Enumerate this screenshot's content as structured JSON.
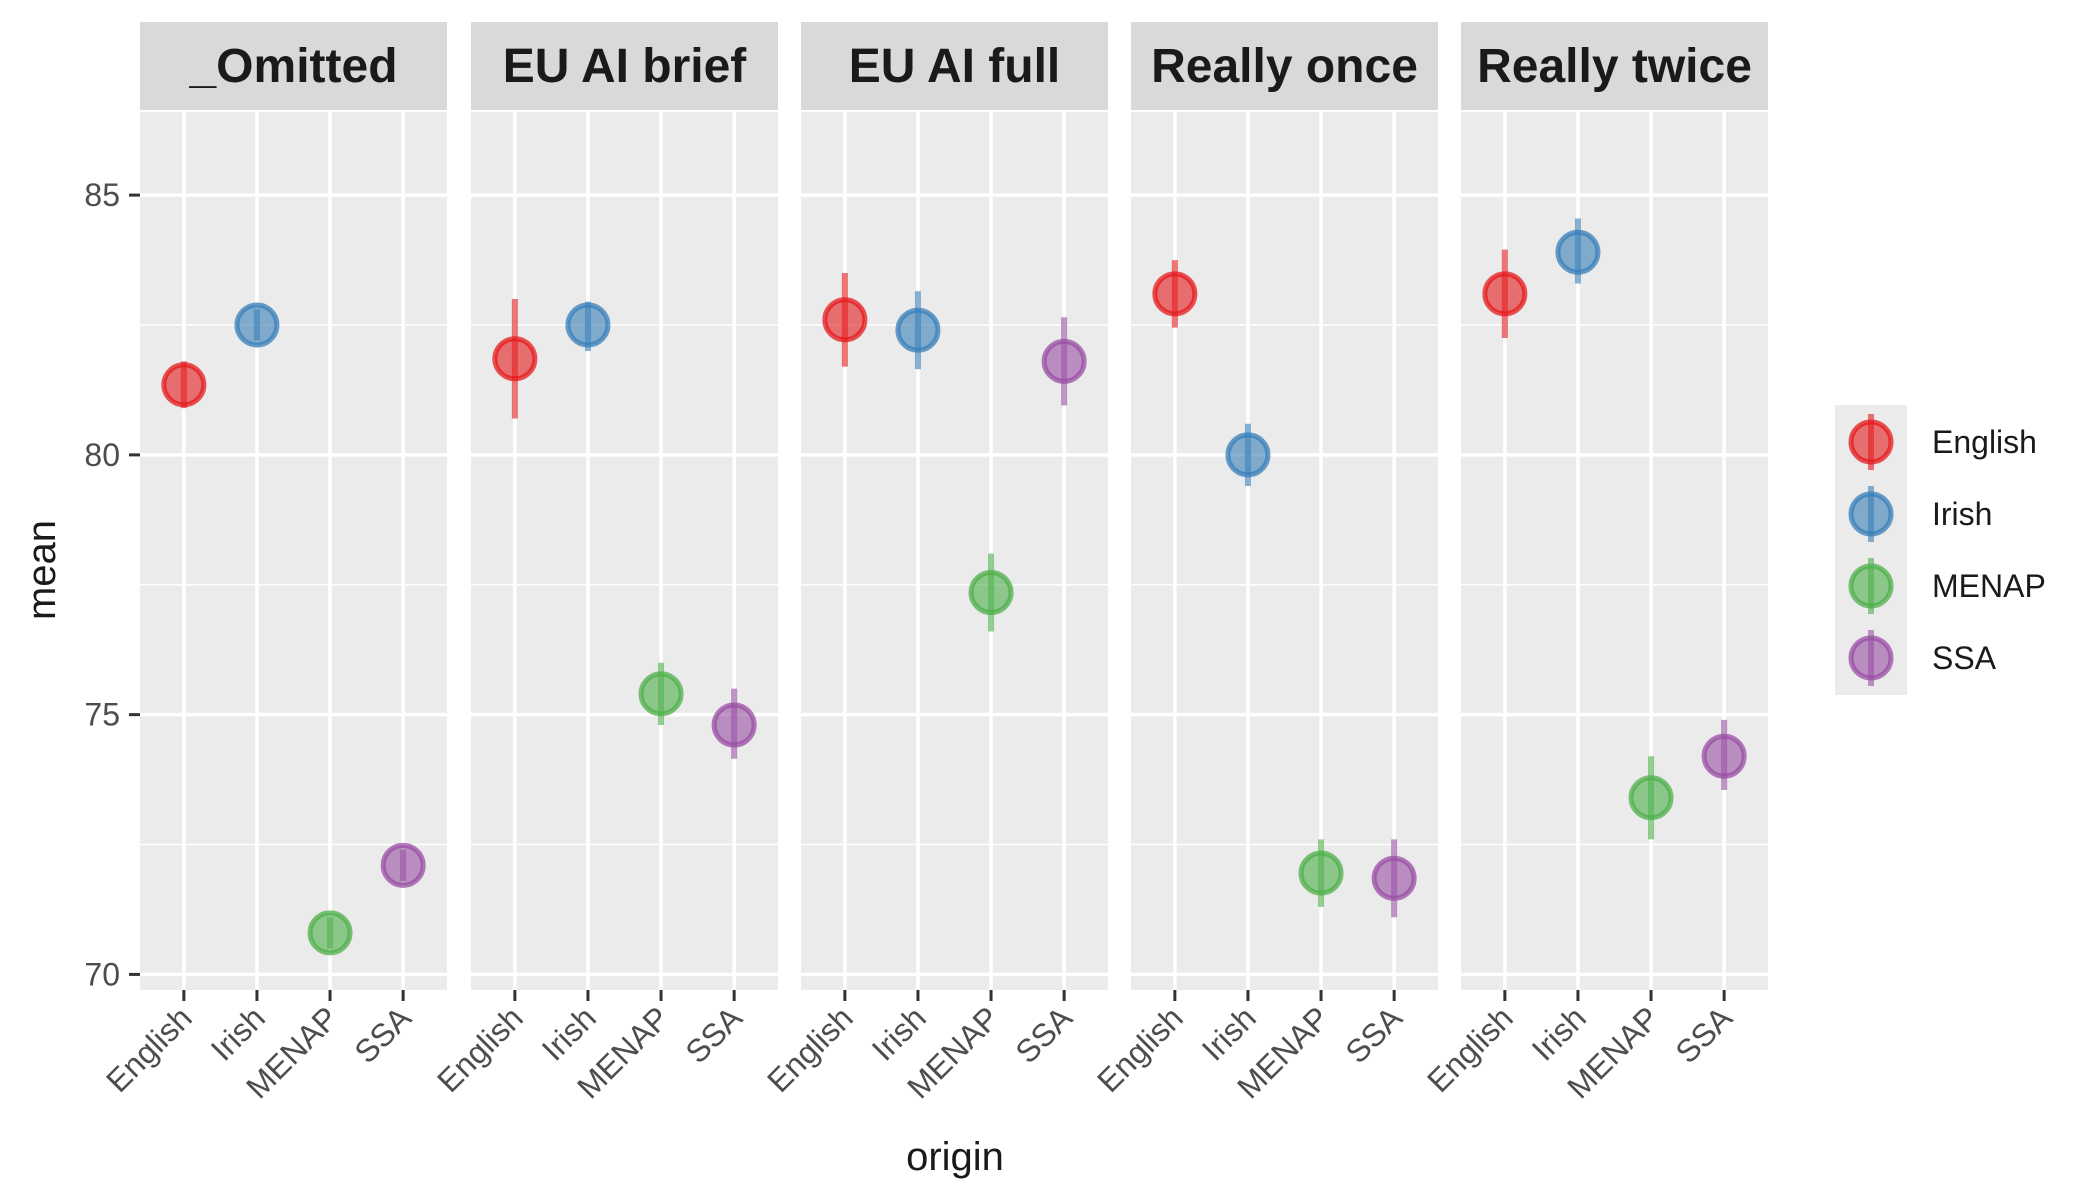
{
  "chart_data": {
    "type": "scatter",
    "xlabel": "origin",
    "ylabel": "mean",
    "ylim": [
      69.7,
      86.6
    ],
    "yticks": [
      70,
      75,
      80,
      85
    ],
    "categories": [
      "English",
      "Irish",
      "MENAP",
      "SSA"
    ],
    "panels": [
      {
        "label": "_Omitted",
        "points": [
          {
            "origin": "English",
            "mean": 81.35,
            "low": 80.9,
            "high": 81.8
          },
          {
            "origin": "Irish",
            "mean": 82.5,
            "low": 82.2,
            "high": 82.8
          },
          {
            "origin": "MENAP",
            "mean": 70.8,
            "low": 70.5,
            "high": 71.1
          },
          {
            "origin": "SSA",
            "mean": 72.1,
            "low": 71.8,
            "high": 72.4
          }
        ]
      },
      {
        "label": "EU AI brief",
        "points": [
          {
            "origin": "English",
            "mean": 81.85,
            "low": 80.7,
            "high": 83.0
          },
          {
            "origin": "Irish",
            "mean": 82.5,
            "low": 82.0,
            "high": 82.95
          },
          {
            "origin": "MENAP",
            "mean": 75.4,
            "low": 74.8,
            "high": 76.0
          },
          {
            "origin": "SSA",
            "mean": 74.8,
            "low": 74.15,
            "high": 75.5
          }
        ]
      },
      {
        "label": "EU AI full",
        "points": [
          {
            "origin": "English",
            "mean": 82.6,
            "low": 81.7,
            "high": 83.5
          },
          {
            "origin": "Irish",
            "mean": 82.4,
            "low": 81.65,
            "high": 83.15
          },
          {
            "origin": "MENAP",
            "mean": 77.35,
            "low": 76.6,
            "high": 78.1
          },
          {
            "origin": "SSA",
            "mean": 81.8,
            "low": 80.95,
            "high": 82.65
          }
        ]
      },
      {
        "label": "Really once",
        "points": [
          {
            "origin": "English",
            "mean": 83.1,
            "low": 82.45,
            "high": 83.75
          },
          {
            "origin": "Irish",
            "mean": 80.0,
            "low": 79.4,
            "high": 80.6
          },
          {
            "origin": "MENAP",
            "mean": 71.95,
            "low": 71.3,
            "high": 72.6
          },
          {
            "origin": "SSA",
            "mean": 71.85,
            "low": 71.1,
            "high": 72.6
          }
        ]
      },
      {
        "label": "Really twice",
        "points": [
          {
            "origin": "English",
            "mean": 83.1,
            "low": 82.25,
            "high": 83.95
          },
          {
            "origin": "Irish",
            "mean": 83.9,
            "low": 83.3,
            "high": 84.55
          },
          {
            "origin": "MENAP",
            "mean": 73.4,
            "low": 72.6,
            "high": 74.2
          },
          {
            "origin": "SSA",
            "mean": 74.2,
            "low": 73.55,
            "high": 74.9
          }
        ]
      }
    ],
    "legend": {
      "position": "right",
      "entries": [
        {
          "label": "English",
          "color": "#e41a1c"
        },
        {
          "label": "Irish",
          "color": "#377eb8"
        },
        {
          "label": "MENAP",
          "color": "#4daf4a"
        },
        {
          "label": "SSA",
          "color": "#984ea3"
        }
      ]
    },
    "grid": true,
    "panel_background": "#ebebeb",
    "strip_background": "#d9d9d9"
  }
}
